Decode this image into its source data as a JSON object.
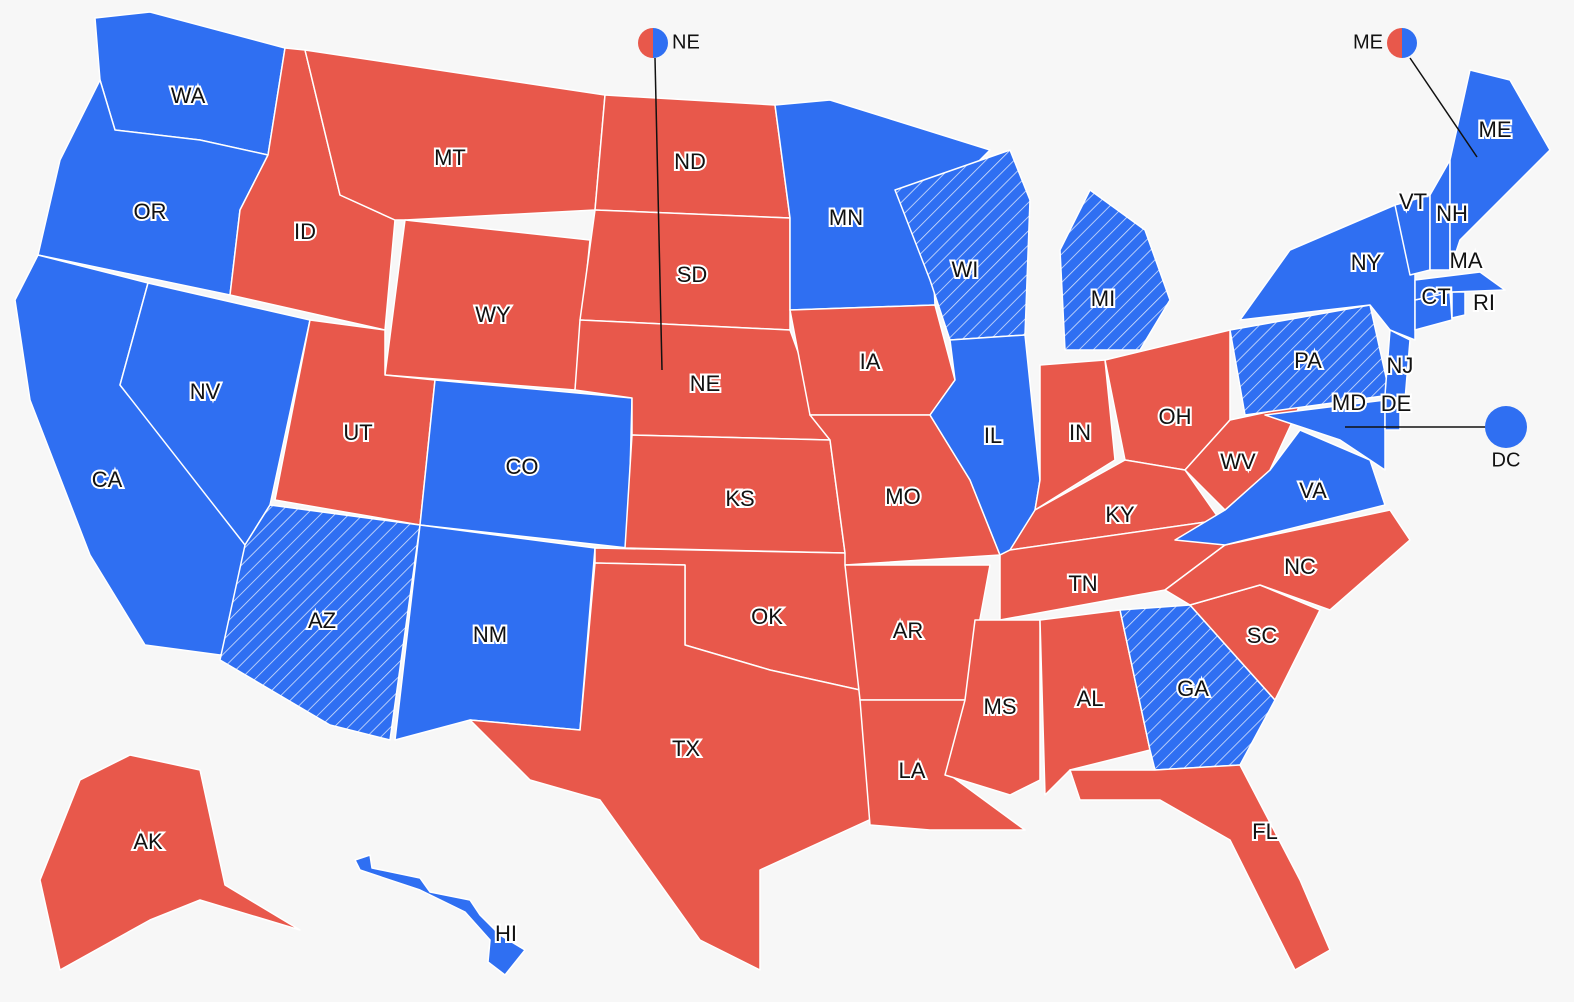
{
  "states": [
    {
      "label": "WA",
      "color": "#2f6ff2",
      "hatched": false
    },
    {
      "label": "OR",
      "color": "#2f6ff2",
      "hatched": false
    },
    {
      "label": "CA",
      "color": "#2f6ff2",
      "hatched": false
    },
    {
      "label": "NV",
      "color": "#2f6ff2",
      "hatched": false
    },
    {
      "label": "ID",
      "color": "#e8584b",
      "hatched": false
    },
    {
      "label": "MT",
      "color": "#e8584b",
      "hatched": false
    },
    {
      "label": "WY",
      "color": "#e8584b",
      "hatched": false
    },
    {
      "label": "UT",
      "color": "#e8584b",
      "hatched": false
    },
    {
      "label": "AZ",
      "color": "#2f6ff2",
      "hatched": true
    },
    {
      "label": "CO",
      "color": "#2f6ff2",
      "hatched": false
    },
    {
      "label": "NM",
      "color": "#2f6ff2",
      "hatched": false
    },
    {
      "label": "ND",
      "color": "#e8584b",
      "hatched": false
    },
    {
      "label": "SD",
      "color": "#e8584b",
      "hatched": false
    },
    {
      "label": "NE",
      "color": "#e8584b",
      "hatched": false
    },
    {
      "label": "KS",
      "color": "#e8584b",
      "hatched": false
    },
    {
      "label": "OK",
      "color": "#e8584b",
      "hatched": false
    },
    {
      "label": "TX",
      "color": "#e8584b",
      "hatched": false
    },
    {
      "label": "MN",
      "color": "#2f6ff2",
      "hatched": false
    },
    {
      "label": "IA",
      "color": "#e8584b",
      "hatched": false
    },
    {
      "label": "MO",
      "color": "#e8584b",
      "hatched": false
    },
    {
      "label": "AR",
      "color": "#e8584b",
      "hatched": false
    },
    {
      "label": "LA",
      "color": "#e8584b",
      "hatched": false
    },
    {
      "label": "WI",
      "color": "#2f6ff2",
      "hatched": true
    },
    {
      "label": "IL",
      "color": "#2f6ff2",
      "hatched": false
    },
    {
      "label": "MI",
      "color": "#2f6ff2",
      "hatched": true
    },
    {
      "label": "IN",
      "color": "#e8584b",
      "hatched": false
    },
    {
      "label": "OH",
      "color": "#e8584b",
      "hatched": false
    },
    {
      "label": "KY",
      "color": "#e8584b",
      "hatched": false
    },
    {
      "label": "TN",
      "color": "#e8584b",
      "hatched": false
    },
    {
      "label": "MS",
      "color": "#e8584b",
      "hatched": false
    },
    {
      "label": "AL",
      "color": "#e8584b",
      "hatched": false
    },
    {
      "label": "GA",
      "color": "#2f6ff2",
      "hatched": true
    },
    {
      "label": "FL",
      "color": "#e8584b",
      "hatched": false
    },
    {
      "label": "SC",
      "color": "#e8584b",
      "hatched": false
    },
    {
      "label": "NC",
      "color": "#e8584b",
      "hatched": false
    },
    {
      "label": "VA",
      "color": "#2f6ff2",
      "hatched": false
    },
    {
      "label": "WV",
      "color": "#e8584b",
      "hatched": false
    },
    {
      "label": "PA",
      "color": "#2f6ff2",
      "hatched": true
    },
    {
      "label": "NY",
      "color": "#2f6ff2",
      "hatched": false
    },
    {
      "label": "MD",
      "color": "#2f6ff2",
      "hatched": false
    },
    {
      "label": "DE",
      "color": "#2f6ff2",
      "hatched": false
    },
    {
      "label": "NJ",
      "color": "#2f6ff2",
      "hatched": false
    },
    {
      "label": "CT",
      "color": "#2f6ff2",
      "hatched": false
    },
    {
      "label": "RI",
      "color": "#2f6ff2",
      "hatched": false
    },
    {
      "label": "MA",
      "color": "#2f6ff2",
      "hatched": false
    },
    {
      "label": "VT",
      "color": "#2f6ff2",
      "hatched": false
    },
    {
      "label": "NH",
      "color": "#2f6ff2",
      "hatched": false
    },
    {
      "label": "ME",
      "color": "#2f6ff2",
      "hatched": false
    },
    {
      "label": "AK",
      "color": "#e8584b",
      "hatched": false
    },
    {
      "label": "HI",
      "color": "#2f6ff2",
      "hatched": false
    }
  ],
  "callouts": [
    {
      "label": "NE",
      "colors": [
        "#e8584b",
        "#2f6ff2"
      ]
    },
    {
      "label": "ME",
      "colors": [
        "#e8584b",
        "#2f6ff2"
      ]
    },
    {
      "label": "DC",
      "colors": [
        "#2f6ff2",
        "#2f6ff2"
      ]
    }
  ]
}
